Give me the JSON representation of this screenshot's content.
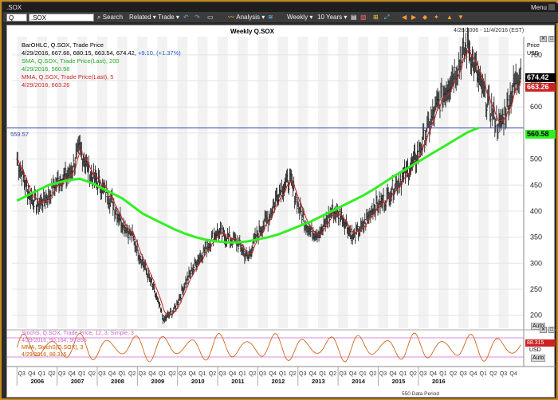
{
  "window": {
    "title": ".SOX",
    "menu_label": "Menu"
  },
  "toolbar": {
    "symbol_prefix": "Q",
    "symbol_value": ".SOX",
    "search_label": "Search",
    "related_label": "Related",
    "trade_label": "Trade",
    "analysis_label": "Analysis",
    "period_label": "Weekly",
    "range_label": "10 Years"
  },
  "chart": {
    "title": "Weekly Q.SOX",
    "date_range": "4/28/2006 - 11/4/2016 (EST)",
    "data_period": "550 Data Period",
    "price_axis_label": "Price",
    "currency_label": "USD",
    "auto_label": "Auto",
    "lower_currency": "USD",
    "lower_auto": "Auto",
    "hline_value": "559.57",
    "badges": {
      "last": "674.42",
      "mma": "663.26",
      "sma": "560.58",
      "stoch": "88.315"
    }
  },
  "legend": {
    "main_line1": "BarOHLC, Q.SOX, Trade Price",
    "main_line2_prefix": "4/29/2016, 667.66, 680.15, 663.54, 674.42,",
    "main_line2_change": "+9.10, (+1.37%)",
    "sma_line1": "SMA, Q.SOX, Trade Price(Last), 200",
    "sma_line2": "4/29/2016, 560.58",
    "mma_line1": "MMA, Q.SOX, Trade Price(Last), 5",
    "mma_line2": "4/29/2016, 663.26",
    "stoch_line1": "StochS, Q.SOX, Trade Price, 12, 3, Simple, 3",
    "stoch_line2": "4/29/2016, 90.164, 90.855",
    "smma_line1": "MMA, StochS(Q.SOX), 3",
    "smma_line2": "4/29/2016, 88.315"
  },
  "colors": {
    "sma": "#33ee22",
    "mma": "#cc2222",
    "stoch": "#cc5500",
    "hline": "#3344aa",
    "bars": "#111111",
    "stoch_band": "#cc66cc"
  },
  "chart_data": {
    "type": "line",
    "y_ticks": [
      200,
      250,
      300,
      350,
      400,
      450,
      500,
      550,
      600,
      650,
      700
    ],
    "ylim": [
      175,
      735
    ],
    "year_labels": [
      "2006",
      "2007",
      "2008",
      "2009",
      "2010",
      "2011",
      "2012",
      "2013",
      "2014",
      "2015",
      "2016"
    ],
    "quarter_labels": [
      "Q3",
      "Q4",
      "Q1",
      "Q2",
      "Q3",
      "Q4",
      "Q1",
      "Q2",
      "Q3",
      "Q4",
      "Q1",
      "Q2",
      "Q3",
      "Q4",
      "Q1",
      "Q2",
      "Q3",
      "Q4",
      "Q1",
      "Q2",
      "Q3",
      "Q4",
      "Q1",
      "Q2",
      "Q3",
      "Q4",
      "Q1",
      "Q2",
      "Q3",
      "Q4",
      "Q1",
      "Q2",
      "Q3",
      "Q4",
      "Q1",
      "Q2",
      "Q3",
      "Q4",
      "Q1",
      "Q2",
      "Q3",
      "Q4",
      "Q1",
      "Q2",
      "Q3",
      "Q4",
      "Q1",
      "Q2",
      "Q3",
      "Q4"
    ],
    "price_series_quarterly": [
      {
        "name": "close",
        "values": [
          500,
          440,
          410,
          430,
          460,
          470,
          520,
          470,
          450,
          420,
          380,
          350,
          300,
          250,
          190,
          210,
          260,
          300,
          330,
          360,
          350,
          340,
          310,
          360,
          390,
          440,
          460,
          400,
          360,
          360,
          400,
          390,
          350,
          370,
          410,
          420,
          450,
          470,
          500,
          550,
          600,
          640,
          680,
          720,
          650,
          600,
          560,
          620,
          674
        ]
      }
    ],
    "sma_series_quarterly": [
      {
        "name": "SMA 200",
        "values": [
          420,
          430,
          440,
          450,
          455,
          460,
          462,
          455,
          445,
          435,
          425,
          410,
          395,
          385,
          375,
          365,
          357,
          350,
          345,
          342,
          340,
          340,
          342,
          346,
          350,
          356,
          364,
          372,
          380,
          390,
          400,
          410,
          420,
          430,
          442,
          455,
          468,
          480,
          492,
          504,
          516,
          528,
          540,
          552,
          560
        ]
      }
    ],
    "stoch_range": [
      0,
      100
    ],
    "stoch_band": [
      20,
      80
    ],
    "last_values": {
      "close": 674.42,
      "sma": 560.58,
      "mma": 663.26,
      "stoch": 88.315
    }
  }
}
